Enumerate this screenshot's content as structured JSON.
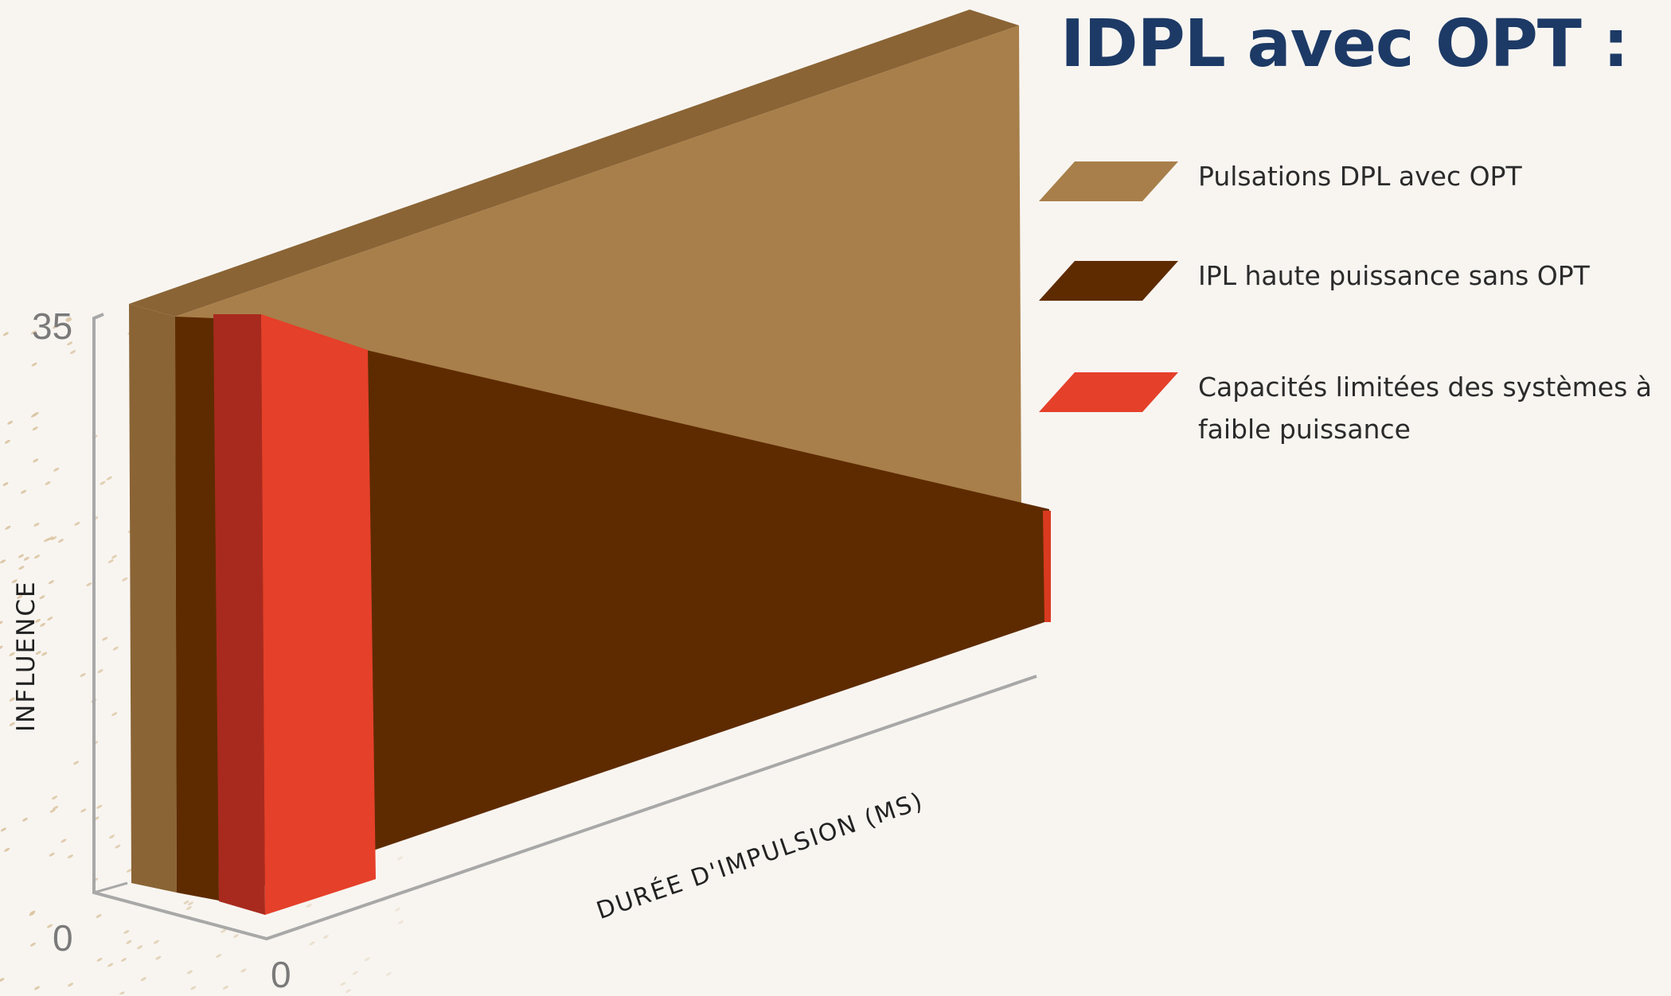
{
  "chart_data": {
    "type": "area",
    "title": "IDPL avec OPT :",
    "xlabel": "DURÉE D'IMPULSION (MS)",
    "ylabel": "INFLUENCE",
    "ylim": [
      0,
      35
    ],
    "y_ticks": [
      "35",
      "0"
    ],
    "x_ticks": [
      "0"
    ],
    "legend_position": "right",
    "series": [
      {
        "name": "Pulsations DPL avec OPT",
        "color": "#a87f4a",
        "start": 35,
        "end": 35
      },
      {
        "name": "IPL haute puissance sans OPT",
        "color": "#5e2b00",
        "start": 32,
        "end": 13
      },
      {
        "name": "Capacités limitées des systèmes à faible puissance",
        "color": "#e5402a",
        "start": 35,
        "end": 2
      }
    ]
  }
}
